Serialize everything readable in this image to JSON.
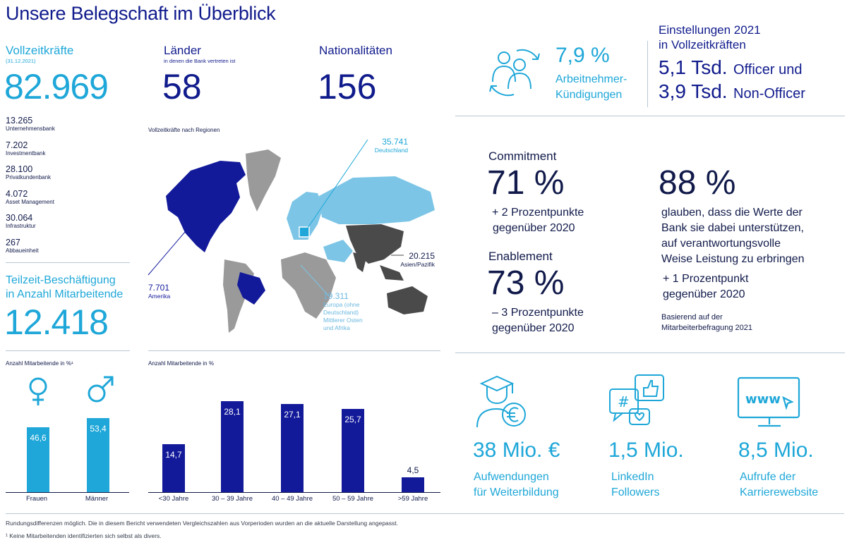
{
  "title": "Unsere Belegschaft im Überblick",
  "colors": {
    "navy": "#101b8c",
    "cyan": "#1ea7d8",
    "grey": "#9a9a9a",
    "dark_grey": "#4a4a4a",
    "light_blue": "#7cc5e6"
  },
  "fte": {
    "label": "Vollzeitkräfte",
    "date": "(31.12.2021)",
    "total": "82.969",
    "divisions": [
      {
        "value": "13.265",
        "name": "Unternehmensbank"
      },
      {
        "value": "7.202",
        "name": "Investmentbank"
      },
      {
        "value": "28.100",
        "name": "Privatkundenbank"
      },
      {
        "value": "4.072",
        "name": "Asset Management"
      },
      {
        "value": "30.064",
        "name": "Infrastruktur"
      },
      {
        "value": "267",
        "name": "Abbaueinheit"
      }
    ]
  },
  "parttime": {
    "label_line1": "Teilzeit-Beschäftigung",
    "label_line2": "in Anzahl Mitarbeitende",
    "value": "12.418"
  },
  "countries": {
    "label": "Länder",
    "sublabel": "in denen die Bank vertreten ist",
    "value": "58"
  },
  "nationalities": {
    "label": "Nationalitäten",
    "value": "156"
  },
  "map": {
    "title": "Vollzeitkräfte nach Regionen",
    "regions": [
      {
        "value": "35.741",
        "name": "Deutschland"
      },
      {
        "value": "20.215",
        "name": "Asien/Pazifik"
      },
      {
        "value": "7.701",
        "name": "Amerika"
      },
      {
        "value": "19.311",
        "name_lines": [
          "Europa (ohne",
          "Deutschland)",
          "Mittlerer Osten",
          "und Afrika"
        ]
      }
    ]
  },
  "attrition": {
    "value": "7,9 %",
    "label_line1": "Arbeitnehmer-",
    "label_line2": "Kündigungen",
    "icon": "people-exchange-icon"
  },
  "hires": {
    "title_line1": "Einstellungen 2021",
    "title_line2": "in Vollzeitkräften",
    "officer_value": "5,1 Tsd.",
    "officer_label": "Officer und",
    "nonofficer_value": "3,9 Tsd.",
    "nonofficer_label": "Non-Officer"
  },
  "survey": {
    "commitment": {
      "label": "Commitment",
      "value": "71 %",
      "delta_line1": "+ 2 Prozentpunkte",
      "delta_line2": "gegenüber 2020"
    },
    "enablement": {
      "label": "Enablement",
      "value": "73 %",
      "delta_line1": "– 3 Prozentpunkte",
      "delta_line2": "gegenüber 2020"
    },
    "values": {
      "value": "88 %",
      "text_lines": [
        "glauben, dass die Werte der",
        "Bank sie dabei unterstützen,",
        "auf verantwortungsvolle",
        "Weise Leistung zu erbringen"
      ],
      "delta_line1": "+ 1 Prozentpunkt",
      "delta_line2": "gegenüber 2020",
      "source_line1": "Basierend auf der",
      "source_line2": "Mitarbeiterbefragung 2021"
    }
  },
  "kpis": [
    {
      "value": "38 Mio. €",
      "line1": "Aufwendungen",
      "line2": "für Weiterbildung",
      "icon": "graduate-euro-icon"
    },
    {
      "value": "1,5 Mio.",
      "line1": "LinkedIn",
      "line2": "Followers",
      "icon": "social-media-icon"
    },
    {
      "value": "8,5 Mio.",
      "line1": "Aufrufe der",
      "line2": "Karrierewebsite",
      "icon": "www-monitor-icon"
    }
  ],
  "footnotes": {
    "line1": "Rundungsdifferenzen möglich. Die in diesem Bericht verwendeten Vergleichszahlen aus Vorperioden wurden an die aktuelle Darstellung angepasst.",
    "line2": "¹ Keine Mitarbeitenden identifizierten sich selbst als divers."
  },
  "chart_data": [
    {
      "type": "bar",
      "title": "Anzahl Mitarbeitende in %¹",
      "categories": [
        "Frauen",
        "Männer"
      ],
      "values": [
        46.6,
        53.4
      ],
      "value_labels": [
        "46,6",
        "53,4"
      ],
      "icons": [
        "female-symbol-icon",
        "male-symbol-icon"
      ],
      "ylim": [
        0,
        60
      ]
    },
    {
      "type": "bar",
      "title": "Anzahl Mitarbeitende in %",
      "categories": [
        "<30 Jahre",
        "30 – 39 Jahre",
        "40 – 49 Jahre",
        "50 – 59 Jahre",
        ">59 Jahre"
      ],
      "values": [
        14.7,
        28.1,
        27.1,
        25.7,
        4.5
      ],
      "value_labels": [
        "14,7",
        "28,1",
        "27,1",
        "25,7",
        "4,5"
      ],
      "ylim": [
        0,
        30
      ]
    }
  ]
}
